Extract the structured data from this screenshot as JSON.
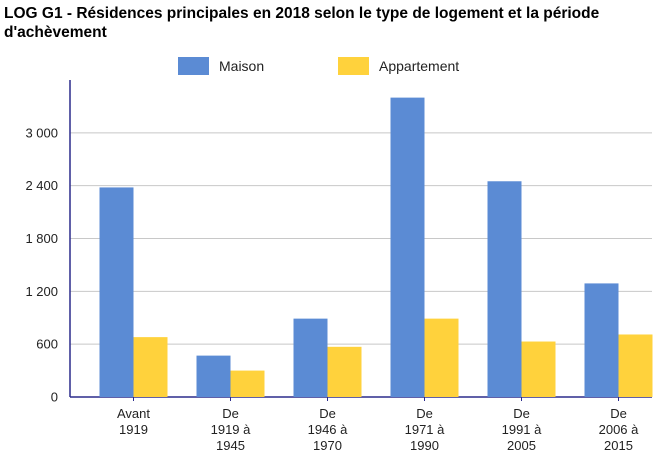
{
  "chart_data": {
    "type": "bar",
    "title": "LOG G1 - Résidences principales en 2018 selon le type de logement et la période d'achèvement",
    "xlabel": "",
    "ylabel": "",
    "categories": [
      [
        "Avant",
        "1919"
      ],
      [
        "De",
        "1919 à",
        "1945"
      ],
      [
        "De",
        "1946 à",
        "1970"
      ],
      [
        "De",
        "1971 à",
        "1990"
      ],
      [
        "De",
        "1991 à",
        "2005"
      ],
      [
        "De",
        "2006 à",
        "2015"
      ]
    ],
    "series": [
      {
        "name": "Maison",
        "color": "#5b8bd4",
        "values": [
          2380,
          470,
          890,
          3400,
          2450,
          1290
        ]
      },
      {
        "name": "Appartement",
        "color": "#ffd23c",
        "values": [
          680,
          300,
          570,
          890,
          630,
          710
        ]
      }
    ],
    "ylim": [
      0,
      3600
    ],
    "yticks": [
      0,
      600,
      1200,
      1800,
      2400,
      3000
    ],
    "ytick_labels": [
      "0",
      "600",
      "1 200",
      "1 800",
      "2 400",
      "3 000"
    ],
    "grid": true,
    "legend_position": "top-center"
  }
}
